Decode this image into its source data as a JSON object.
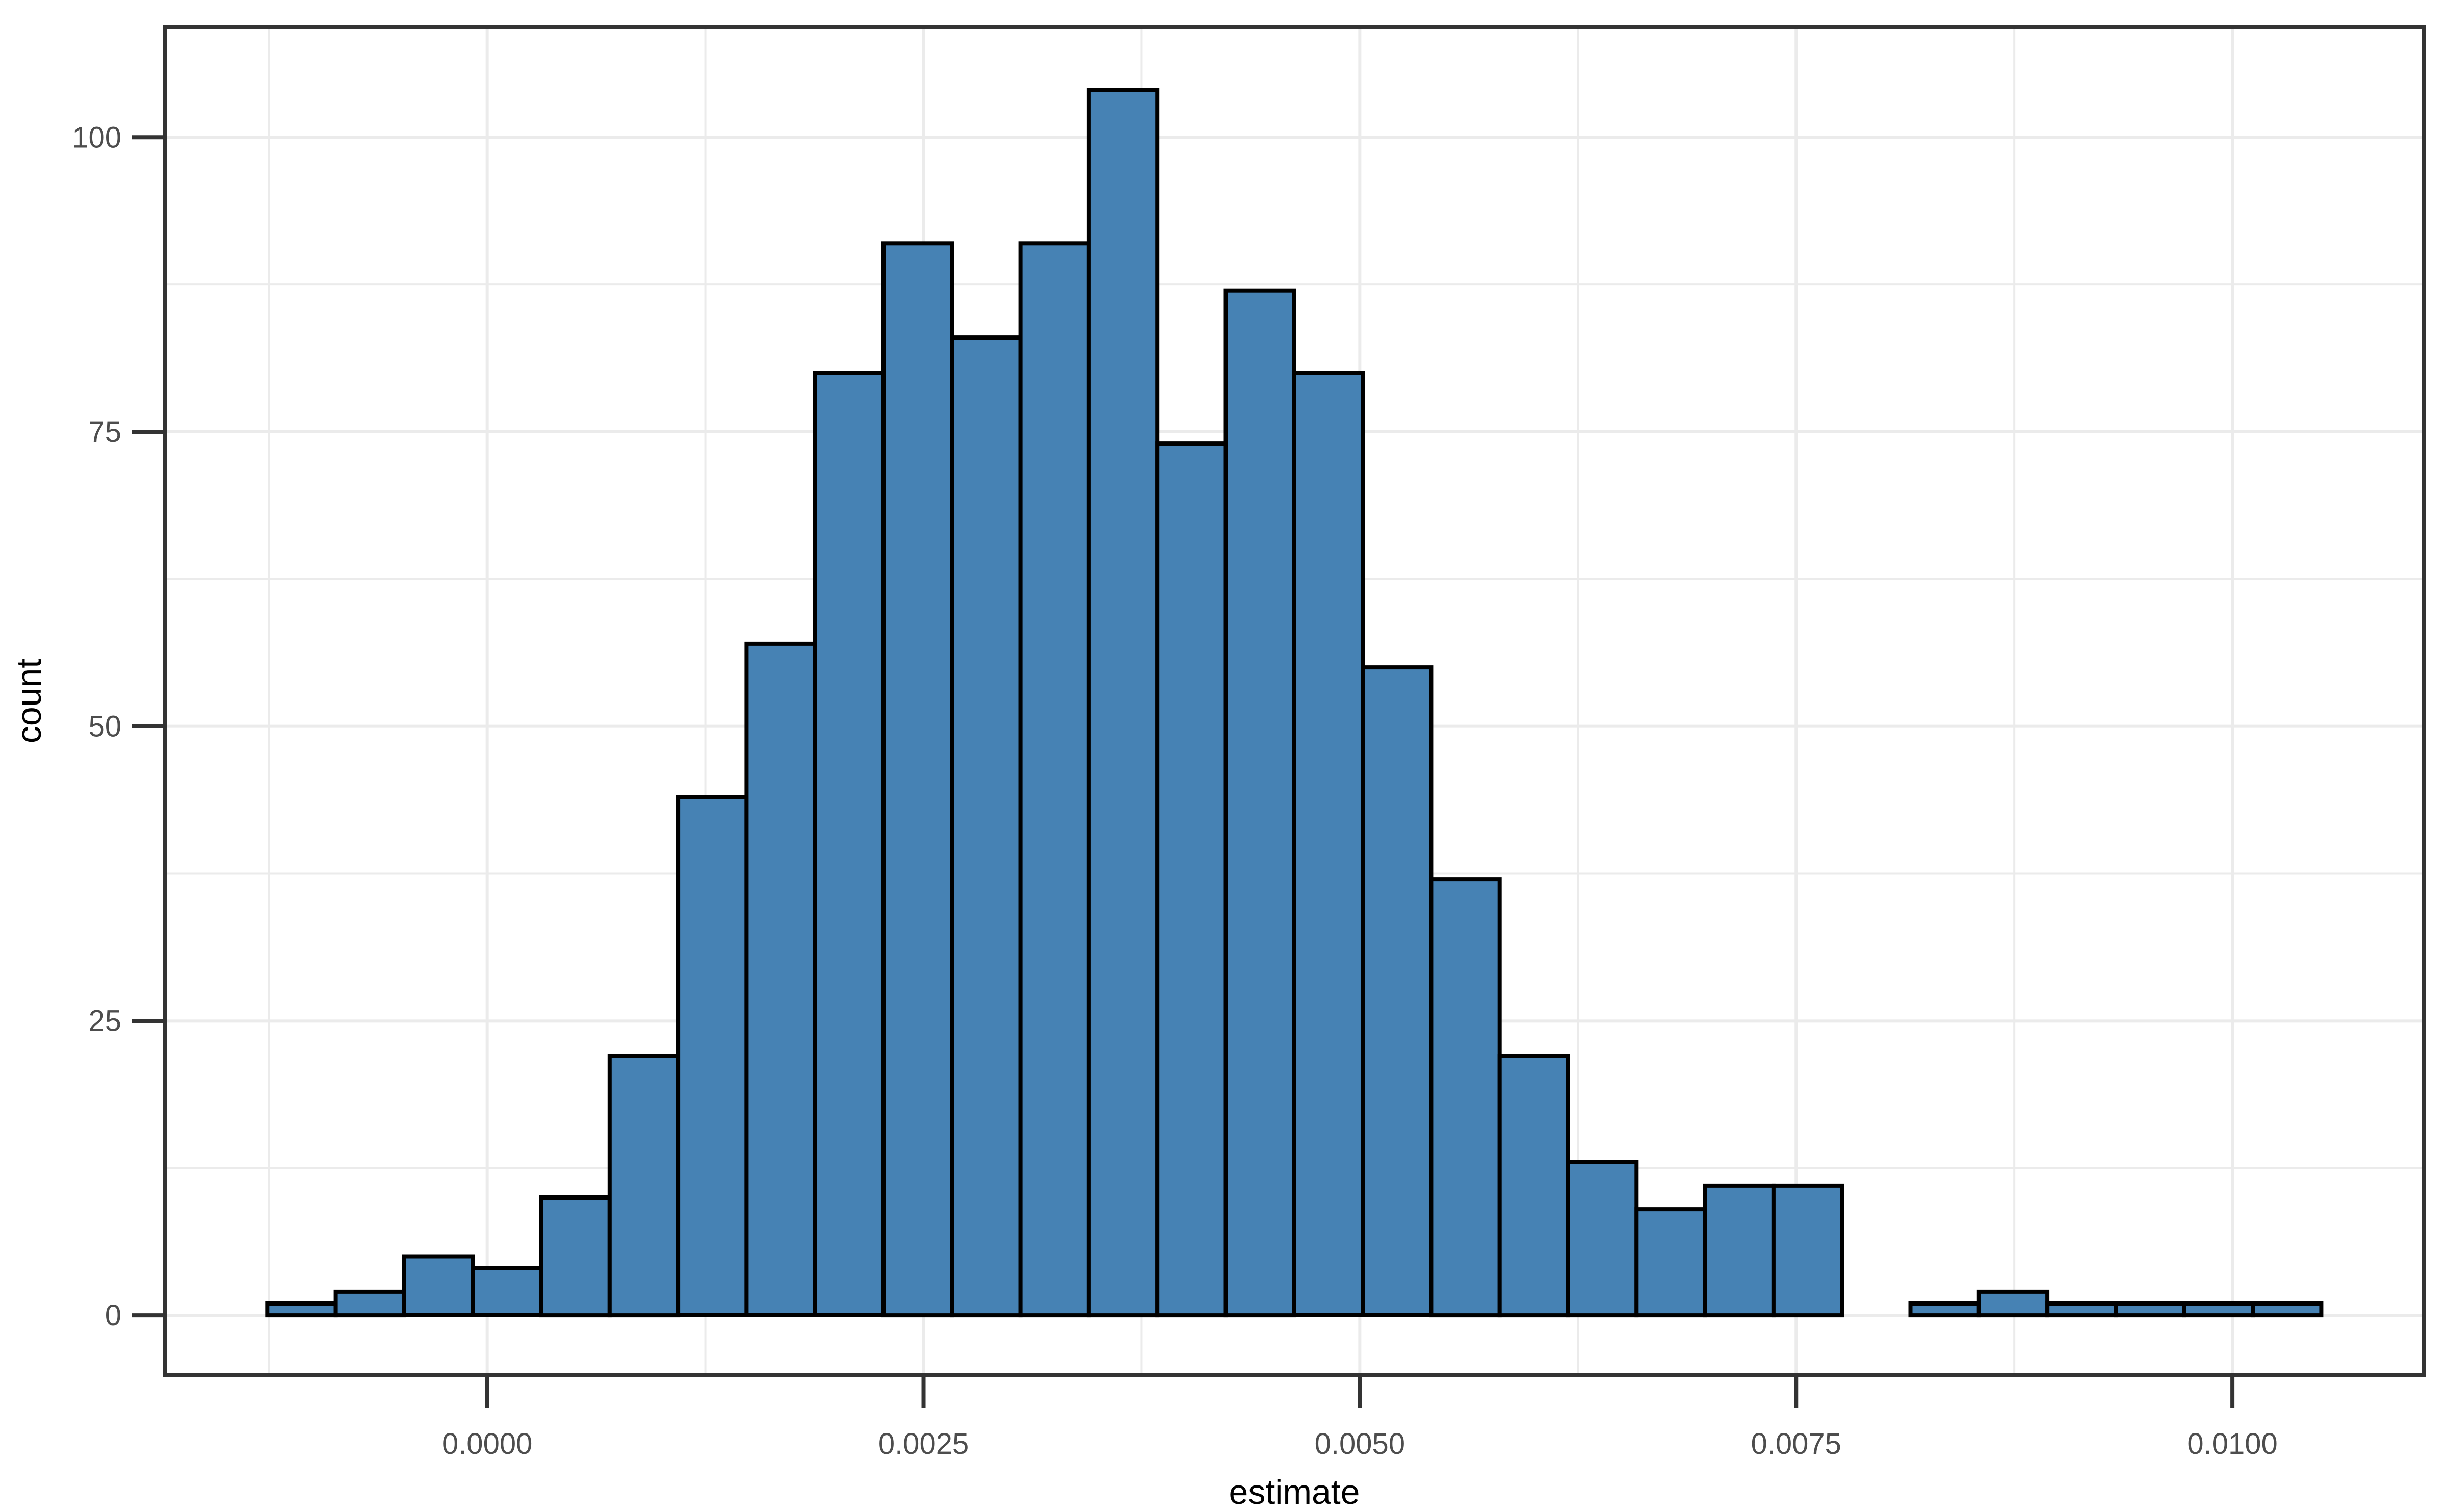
{
  "chart_data": {
    "type": "bar",
    "subtype": "histogram",
    "title": "",
    "xlabel": "estimate",
    "ylabel": "count",
    "bin_start": -0.00126,
    "bin_width": 0.0003923,
    "counts": [
      1,
      2,
      5,
      4,
      10,
      22,
      44,
      57,
      80,
      91,
      83,
      91,
      104,
      74,
      87,
      80,
      55,
      37,
      22,
      13,
      9,
      11,
      11,
      0,
      1,
      2,
      1,
      1,
      1,
      1
    ],
    "total_n": 1000,
    "x_ticks": {
      "values": [
        0.0,
        0.0025,
        0.005,
        0.0075,
        0.01
      ],
      "labels": [
        "0.0000",
        "0.0025",
        "0.0050",
        "0.0075",
        "0.0100"
      ]
    },
    "x_minor_gridlines": [
      -0.00125,
      0.00125,
      0.00375,
      0.00625,
      0.00875
    ],
    "y_ticks": {
      "values": [
        0,
        25,
        50,
        75,
        100
      ],
      "labels": [
        "0",
        "25",
        "50",
        "75",
        "100"
      ]
    },
    "y_minor_gridlines": [
      12.5,
      37.5,
      62.5,
      87.5
    ],
    "xlim": [
      -0.001848,
      0.011098
    ],
    "ylim": [
      -5.06,
      109.36
    ],
    "grid": "on",
    "legend": "none",
    "colors": {
      "bar_fill": "#4682b4",
      "bar_stroke": "#000000",
      "panel_background": "#ffffff",
      "page_background": "#ffffff",
      "gridline": "#ebebeb",
      "panel_border": "#333333",
      "tick_mark": "#333333",
      "tick_label_text": "#4d4d4d",
      "axis_title_text": "#000000"
    }
  }
}
